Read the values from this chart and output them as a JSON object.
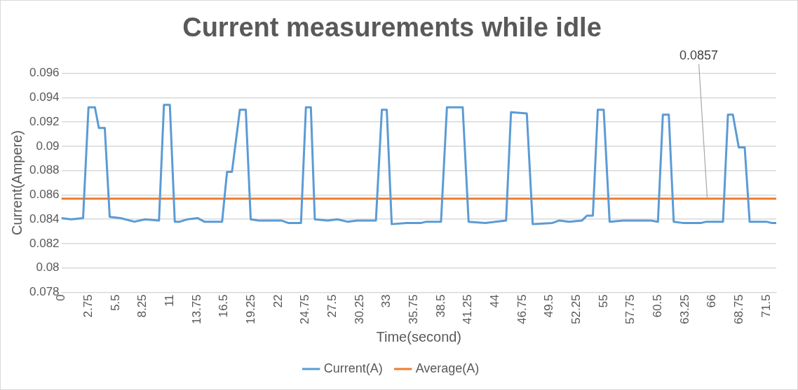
{
  "chart_data": {
    "type": "line",
    "title": "Current measurements while idle",
    "xlabel": "Time(second)",
    "ylabel": "Current(Ampere)",
    "xlim": [
      0,
      72.5
    ],
    "xticks": [
      0,
      2.75,
      5.5,
      8.25,
      11,
      13.75,
      16.5,
      19.25,
      22,
      24.75,
      27.5,
      30.25,
      33,
      35.75,
      38.5,
      41.25,
      44,
      46.75,
      49.5,
      52.25,
      55,
      57.75,
      60.5,
      63.25,
      66,
      68.75,
      71.5
    ],
    "ylim": [
      0.078,
      0.096
    ],
    "yticks": [
      0.078,
      0.08,
      0.082,
      0.084,
      0.086,
      0.088,
      0.09,
      0.092,
      0.094,
      0.096
    ],
    "grid": "y",
    "legend": "bottom",
    "marker": "none",
    "line_style": "solid",
    "series": [
      {
        "name": "Current(A)",
        "color": "#5b9bd5",
        "x": [
          0,
          1,
          2.2,
          2.75,
          3.4,
          3.8,
          4.4,
          4.9,
          6,
          7.4,
          8.5,
          9.9,
          10.4,
          11,
          11.5,
          12,
          12.8,
          13.8,
          14.5,
          16.3,
          16.8,
          17.3,
          18.1,
          18.7,
          19.2,
          20,
          22.3,
          23,
          24.3,
          24.8,
          25.3,
          25.7,
          27,
          28,
          29,
          30,
          31.9,
          32.5,
          33,
          33.5,
          35,
          36.5,
          37,
          38.5,
          39.1,
          40.7,
          41.3,
          43,
          44,
          45.1,
          45.6,
          47.2,
          47.8,
          49.8,
          50.5,
          51.5,
          52.8,
          53.3,
          53.9,
          54.4,
          55,
          55.6,
          57,
          59.8,
          60.5,
          61,
          61.6,
          62.1,
          63,
          64.9,
          65.4,
          67.1,
          67.6,
          68.1,
          68.7,
          69.3,
          69.8,
          71.5,
          72,
          72.5
        ],
        "values": [
          0.0841,
          0.084,
          0.0841,
          0.0932,
          0.0932,
          0.0915,
          0.0915,
          0.0842,
          0.0841,
          0.0838,
          0.084,
          0.0839,
          0.0934,
          0.0934,
          0.0838,
          0.0838,
          0.084,
          0.0841,
          0.0838,
          0.0838,
          0.0879,
          0.0879,
          0.093,
          0.093,
          0.084,
          0.0839,
          0.0839,
          0.0837,
          0.0837,
          0.0932,
          0.0932,
          0.084,
          0.0839,
          0.084,
          0.0838,
          0.0839,
          0.0839,
          0.093,
          0.093,
          0.0836,
          0.0837,
          0.0837,
          0.0838,
          0.0838,
          0.0932,
          0.0932,
          0.0838,
          0.0837,
          0.0838,
          0.0839,
          0.0928,
          0.0927,
          0.0836,
          0.0837,
          0.0839,
          0.0838,
          0.0839,
          0.0843,
          0.0843,
          0.093,
          0.093,
          0.0838,
          0.0839,
          0.0839,
          0.0838,
          0.0926,
          0.0926,
          0.0838,
          0.0837,
          0.0837,
          0.0838,
          0.0838,
          0.0926,
          0.0926,
          0.0899,
          0.0899,
          0.0838,
          0.0838,
          0.0837,
          0.0837
        ]
      },
      {
        "name": "Average(A)",
        "color": "#ed7d31",
        "x": [
          0,
          72.5
        ],
        "values": [
          0.0857,
          0.0857
        ]
      }
    ],
    "annotations": [
      {
        "text": "0.0857",
        "x": 65.5,
        "y": 0.0857
      }
    ]
  }
}
